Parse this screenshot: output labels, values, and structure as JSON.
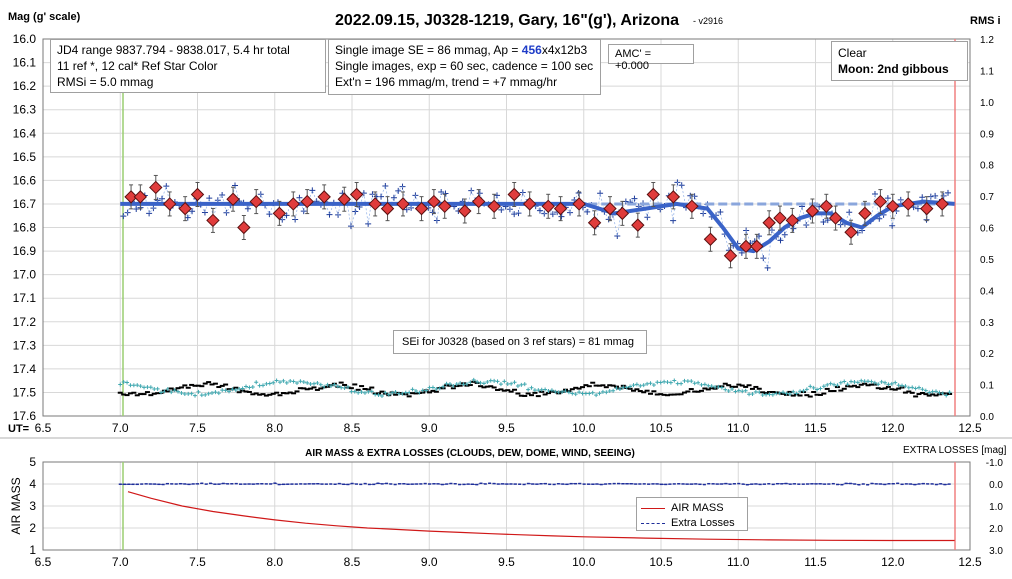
{
  "title": "2022.09.15, J0328-1219, Gary, 16\"(g'), Arizona",
  "version": "- v2916",
  "top_panel": {
    "ylabel_left": "Mag (g' scale)",
    "ylabel_right": "RMS i",
    "x_axis_prefix": "UT=",
    "x_ticks": [
      "6.5",
      "7.0",
      "7.5",
      "8.0",
      "8.5",
      "9.0",
      "9.5",
      "10.0",
      "10.5",
      "11.0",
      "11.5",
      "12.0",
      "12.5"
    ],
    "y_ticks": [
      "16.0",
      "16.1",
      "16.2",
      "16.3",
      "16.4",
      "16.5",
      "16.6",
      "16.7",
      "16.8",
      "16.9",
      "17.0",
      "17.1",
      "17.2",
      "17.3",
      "17.4",
      "17.5",
      "17.6"
    ],
    "y_ticks_right": [
      "1.2",
      "1.1",
      "1.0",
      "0.9",
      "0.8",
      "0.7",
      "0.6",
      "0.5",
      "0.4",
      "0.3",
      "0.2",
      "0.1",
      "0.0"
    ]
  },
  "info": {
    "line1": "JD4 range 9837.794 - 9838.017, 5.4 hr total",
    "line2": "11 ref *, 12 cal*  Ref Star Color",
    "line3": "RMSi = 5.0 mmag",
    "se_prefix": "Single image SE = 86 mmag, Ap = ",
    "ap_value": "456",
    "se_suffix": "x4x12b3",
    "line5": "Single images, exp = 60 sec, cadence = 100 sec",
    "line6": "Ext'n = 196 mmag/m, trend = +7 mmag/hr",
    "amc": "AMC' = +0.000",
    "sky": "Clear",
    "moon": "Moon: 2nd gibbous",
    "sei": "SEi for J0328 (based on 3 ref stars) = 81 mmag"
  },
  "bottom_panel": {
    "title": "AIR MASS & EXTRA LOSSES (CLOUDS, DEW, DOME, WIND, SEEING)",
    "ylabel_left": "AIR MASS",
    "ylabel_right": "EXTRA LOSSES [mag]",
    "y_ticks": [
      "5",
      "4",
      "3",
      "2",
      "1"
    ],
    "y_ticks_right": [
      "-1.0",
      "0.0",
      "1.0",
      "2.0",
      "3.0"
    ],
    "x_ticks": [
      "6.5",
      "7.0",
      "7.5",
      "8.0",
      "8.5",
      "9.0",
      "9.5",
      "10.0",
      "10.5",
      "11.0",
      "11.5",
      "12.0",
      "12.5"
    ],
    "legend": [
      "AIR MASS",
      "Extra Losses"
    ]
  },
  "colors": {
    "model": "#3a63c8",
    "binned": "#e03c3c",
    "raw": "#1e3c9a",
    "ref_rms": "#40a8b0",
    "airmass": "#d01818",
    "extra_losses": "#1e2e9a",
    "start_line": "#9acd70",
    "end_line": "#f08080"
  },
  "chart_data": [
    {
      "type": "scatter",
      "title": "2022.09.15, J0328-1219, Gary, 16\"(g'), Arizona",
      "xlabel": "UT",
      "ylabel": "Mag (g' scale)",
      "xlim": [
        6.5,
        12.5
      ],
      "ylim": [
        16.0,
        17.6
      ],
      "y_inverted": true,
      "ylabel_right": "RMS i",
      "ylim_right": [
        0.0,
        1.2
      ],
      "series": [
        {
          "name": "binned",
          "x": [
            7.07,
            7.13,
            7.23,
            7.32,
            7.42,
            7.5,
            7.6,
            7.73,
            7.8,
            7.88,
            8.03,
            8.12,
            8.21,
            8.32,
            8.45,
            8.53,
            8.65,
            8.73,
            8.83,
            8.95,
            9.03,
            9.1,
            9.23,
            9.32,
            9.42,
            9.55,
            9.65,
            9.77,
            9.85,
            9.97,
            10.07,
            10.17,
            10.25,
            10.35,
            10.45,
            10.58,
            10.7,
            10.82,
            10.95,
            11.05,
            11.12,
            11.2,
            11.27,
            11.35,
            11.48,
            11.57,
            11.63,
            11.73,
            11.82,
            11.92,
            12.0,
            12.1,
            12.22,
            12.32
          ],
          "y": [
            16.67,
            16.67,
            16.63,
            16.7,
            16.72,
            16.66,
            16.77,
            16.68,
            16.8,
            16.69,
            16.74,
            16.7,
            16.69,
            16.67,
            16.68,
            16.66,
            16.7,
            16.72,
            16.7,
            16.72,
            16.69,
            16.71,
            16.73,
            16.69,
            16.71,
            16.66,
            16.7,
            16.71,
            16.72,
            16.7,
            16.78,
            16.72,
            16.74,
            16.79,
            16.66,
            16.67,
            16.71,
            16.85,
            16.92,
            16.88,
            16.88,
            16.78,
            16.76,
            16.77,
            16.73,
            16.71,
            16.76,
            16.82,
            16.74,
            16.69,
            16.71,
            16.7,
            16.72,
            16.7
          ]
        },
        {
          "name": "model",
          "x": [
            7.0,
            7.5,
            8.0,
            8.5,
            9.0,
            9.5,
            10.0,
            10.2,
            10.4,
            10.6,
            10.8,
            10.9,
            11.0,
            11.1,
            11.2,
            11.3,
            11.4,
            11.5,
            11.6,
            11.7,
            11.8,
            11.9,
            12.0,
            12.2,
            12.4
          ],
          "y": [
            16.7,
            16.7,
            16.7,
            16.7,
            16.7,
            16.7,
            16.7,
            16.74,
            16.72,
            16.7,
            16.72,
            16.8,
            16.89,
            16.9,
            16.86,
            16.8,
            16.76,
            16.74,
            16.74,
            16.78,
            16.8,
            16.75,
            16.71,
            16.69,
            16.7
          ]
        },
        {
          "name": "trend",
          "x": [
            7.0,
            12.4
          ],
          "y": [
            16.7,
            16.7
          ]
        }
      ],
      "annotations": [
        "UT="
      ]
    },
    {
      "type": "line",
      "title": "AIR MASS & EXTRA LOSSES (CLOUDS, DEW, DOME, WIND, SEEING)",
      "xlabel": "UT",
      "ylabel": "AIR MASS",
      "ylabel_right": "EXTRA LOSSES [mag]",
      "xlim": [
        6.5,
        12.5
      ],
      "ylim": [
        1,
        5
      ],
      "ylim_right": [
        -1.0,
        3.0
      ],
      "series": [
        {
          "name": "AIR MASS",
          "x": [
            7.05,
            7.2,
            7.4,
            7.6,
            7.8,
            8.0,
            8.2,
            8.4,
            8.6,
            8.8,
            9.0,
            9.2,
            9.4,
            9.6,
            9.8,
            10.0,
            10.4,
            10.8,
            11.2,
            11.6,
            12.0,
            12.4
          ],
          "y": [
            3.65,
            3.35,
            3.0,
            2.75,
            2.55,
            2.37,
            2.22,
            2.1,
            2.0,
            1.93,
            1.86,
            1.8,
            1.74,
            1.69,
            1.64,
            1.6,
            1.54,
            1.49,
            1.46,
            1.44,
            1.43,
            1.43
          ]
        },
        {
          "name": "Extra Losses",
          "x": [
            7.0,
            8.0,
            9.0,
            10.0,
            11.0,
            12.0,
            12.4
          ],
          "y": [
            0.0,
            0.0,
            0.0,
            0.0,
            0.0,
            0.0,
            0.0
          ]
        }
      ]
    }
  ]
}
